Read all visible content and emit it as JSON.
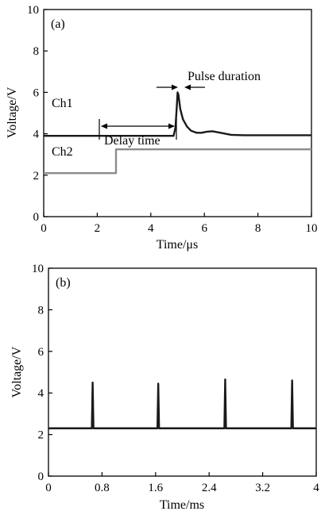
{
  "chart_data": [
    {
      "panel": "(a)",
      "type": "line",
      "xlabel": "Time/μs",
      "ylabel": "Voltage/V",
      "xlim": [
        0,
        10
      ],
      "ylim": [
        0,
        10
      ],
      "xticks": [
        0,
        2,
        4,
        6,
        8,
        10
      ],
      "yticks": [
        0,
        2,
        4,
        6,
        8,
        10
      ],
      "xticklabels": [
        "0",
        "2",
        "4",
        "6",
        "8",
        "10"
      ],
      "yticklabels": [
        "0",
        "2",
        "4",
        "6",
        "8",
        "10"
      ],
      "grid": false,
      "series": [
        {
          "name": "Ch1",
          "color": "#1a1a1a",
          "x": [
            0,
            4.85,
            4.92,
            4.97,
            5.0,
            5.03,
            5.1,
            5.2,
            5.35,
            5.5,
            5.7,
            5.9,
            6.1,
            6.3,
            6.6,
            7.0,
            7.5,
            10
          ],
          "y": [
            3.9,
            3.9,
            4.3,
            5.3,
            6.0,
            5.9,
            5.2,
            4.7,
            4.35,
            4.15,
            4.05,
            4.05,
            4.1,
            4.12,
            4.05,
            3.95,
            3.93,
            3.93
          ]
        },
        {
          "name": "Ch2",
          "color": "#8c8c8c",
          "x": [
            0,
            2.7,
            2.7,
            10
          ],
          "y": [
            2.1,
            2.1,
            3.25,
            3.25
          ]
        }
      ],
      "annotations": [
        "Delay time",
        "Pulse duration"
      ]
    },
    {
      "panel": "(b)",
      "type": "line",
      "xlabel": "Time/ms",
      "ylabel": "Voltage/V",
      "xlim": [
        0,
        4
      ],
      "ylim": [
        0,
        10
      ],
      "xticks": [
        0,
        0.8,
        1.6,
        2.4,
        3.2,
        4
      ],
      "yticks": [
        0,
        2,
        4,
        6,
        8,
        10
      ],
      "xticklabels": [
        "0",
        "0.8",
        "1.6",
        "2.4",
        "3.2",
        "4"
      ],
      "yticklabels": [
        "0",
        "2",
        "4",
        "6",
        "8",
        "10"
      ],
      "grid": false,
      "series": [
        {
          "color": "#1a1a1a",
          "baseline": 2.3,
          "pulse_times": [
            0.66,
            1.64,
            2.64,
            3.64
          ],
          "pulse_peaks": [
            4.5,
            4.45,
            4.65,
            4.6
          ]
        }
      ]
    }
  ]
}
